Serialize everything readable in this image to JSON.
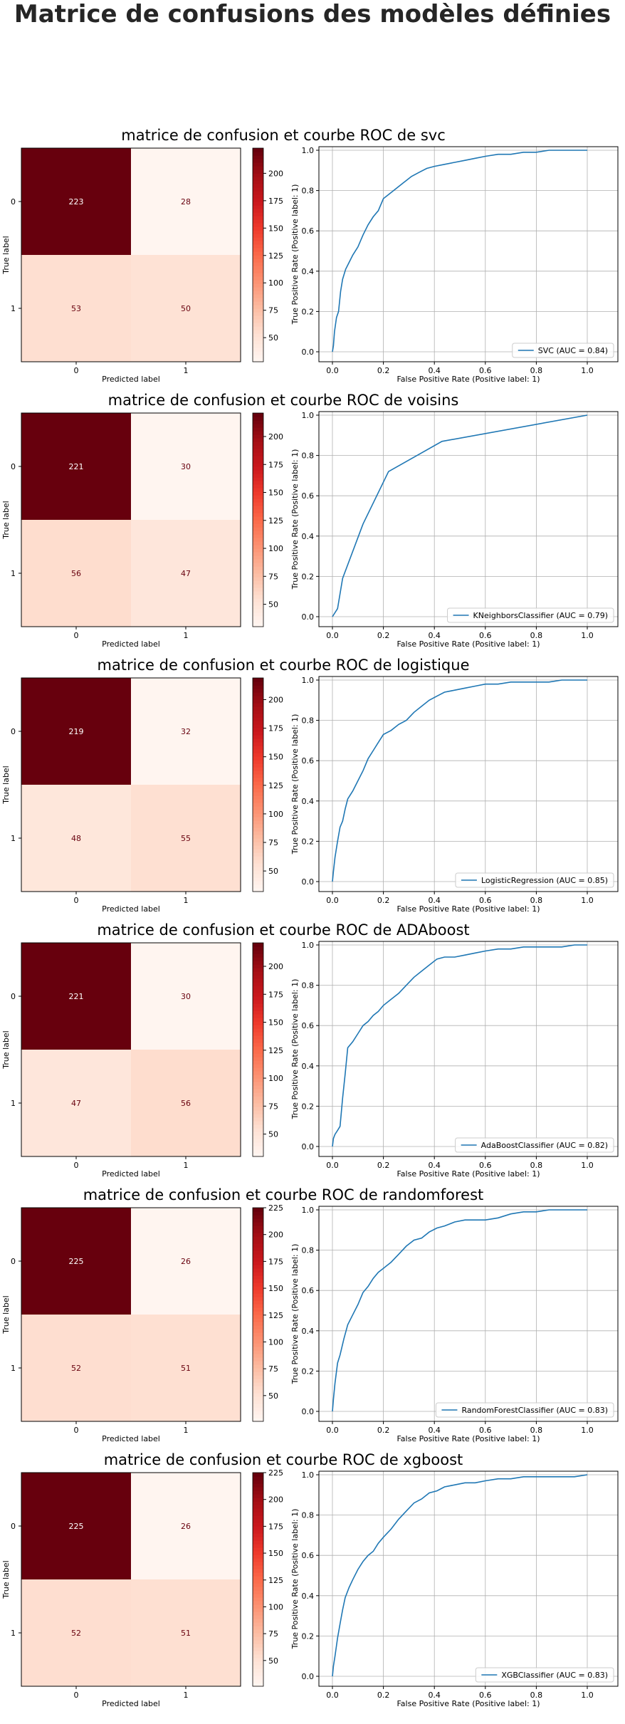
{
  "title": "Matrice de confusions des modèles définies",
  "chart_data": [
    {
      "type": "heatmap",
      "title": "matrice de confusion et courbe ROC de svc",
      "xlabel": "Predicted label",
      "ylabel": "True label",
      "x_tick_labels": [
        "0",
        "1"
      ],
      "y_tick_labels": [
        "0",
        "1"
      ],
      "matrix": [
        [
          223,
          28
        ],
        [
          53,
          50
        ]
      ],
      "colormap": "Reds",
      "colorbar_ticks": [
        50,
        75,
        100,
        125,
        150,
        175,
        200
      ],
      "colorbar_range": [
        28,
        223
      ],
      "roc": {
        "type": "line",
        "xlabel": "False Positive Rate (Positive label: 1)",
        "ylabel": "True Positive Rate (Positive label: 1)",
        "xlim": [
          0.0,
          1.0
        ],
        "ylim": [
          0.0,
          1.0
        ],
        "ticks": [
          "0.0",
          "0.2",
          "0.4",
          "0.6",
          "0.8",
          "1.0"
        ],
        "grid": true,
        "legend": "SVC (AUC = 0.84)",
        "legend_position": "lower-right",
        "color": "#1f77b4",
        "x": [
          0,
          0.004,
          0.008,
          0.016,
          0.024,
          0.032,
          0.04,
          0.052,
          0.064,
          0.08,
          0.1,
          0.12,
          0.14,
          0.16,
          0.18,
          0.2,
          0.22,
          0.25,
          0.28,
          0.31,
          0.34,
          0.37,
          0.4,
          0.44,
          0.48,
          0.52,
          0.56,
          0.6,
          0.65,
          0.7,
          0.75,
          0.8,
          0.85,
          0.9,
          0.95,
          1.0
        ],
        "y": [
          0,
          0.03,
          0.1,
          0.17,
          0.2,
          0.3,
          0.36,
          0.41,
          0.44,
          0.48,
          0.52,
          0.58,
          0.63,
          0.67,
          0.7,
          0.76,
          0.78,
          0.81,
          0.84,
          0.87,
          0.89,
          0.91,
          0.92,
          0.93,
          0.94,
          0.95,
          0.96,
          0.97,
          0.98,
          0.98,
          0.99,
          0.99,
          1.0,
          1.0,
          1.0,
          1.0
        ]
      }
    },
    {
      "type": "heatmap",
      "title": "matrice de confusion et courbe ROC de voisins",
      "xlabel": "Predicted label",
      "ylabel": "True label",
      "x_tick_labels": [
        "0",
        "1"
      ],
      "y_tick_labels": [
        "0",
        "1"
      ],
      "matrix": [
        [
          221,
          30
        ],
        [
          56,
          47
        ]
      ],
      "colormap": "Reds",
      "colorbar_ticks": [
        50,
        75,
        100,
        125,
        150,
        175,
        200
      ],
      "colorbar_range": [
        30,
        221
      ],
      "roc": {
        "type": "line",
        "xlabel": "False Positive Rate (Positive label: 1)",
        "ylabel": "True Positive Rate (Positive label: 1)",
        "xlim": [
          0.0,
          1.0
        ],
        "ylim": [
          0.0,
          1.0
        ],
        "ticks": [
          "0.0",
          "0.2",
          "0.4",
          "0.6",
          "0.8",
          "1.0"
        ],
        "grid": true,
        "legend": "KNeighborsClassifier (AUC = 0.79)",
        "legend_position": "lower-right",
        "color": "#1f77b4",
        "x": [
          0,
          0.02,
          0.04,
          0.12,
          0.22,
          0.43,
          1.0
        ],
        "y": [
          0,
          0.04,
          0.19,
          0.46,
          0.72,
          0.87,
          1.0
        ]
      }
    },
    {
      "type": "heatmap",
      "title": "matrice de confusion et courbe ROC de logistique",
      "xlabel": "Predicted label",
      "ylabel": "True label",
      "x_tick_labels": [
        "0",
        "1"
      ],
      "y_tick_labels": [
        "0",
        "1"
      ],
      "matrix": [
        [
          219,
          32
        ],
        [
          48,
          55
        ]
      ],
      "colormap": "Reds",
      "colorbar_ticks": [
        50,
        75,
        100,
        125,
        150,
        175,
        200
      ],
      "colorbar_range": [
        32,
        219
      ],
      "roc": {
        "type": "line",
        "xlabel": "False Positive Rate (Positive label: 1)",
        "ylabel": "True Positive Rate (Positive label: 1)",
        "xlim": [
          0.0,
          1.0
        ],
        "ylim": [
          0.0,
          1.0
        ],
        "ticks": [
          "0.0",
          "0.2",
          "0.4",
          "0.6",
          "0.8",
          "1.0"
        ],
        "grid": true,
        "legend": "LogisticRegression (AUC = 0.85)",
        "legend_position": "lower-right",
        "color": "#1f77b4",
        "x": [
          0,
          0.004,
          0.01,
          0.02,
          0.03,
          0.04,
          0.05,
          0.06,
          0.08,
          0.1,
          0.12,
          0.14,
          0.16,
          0.18,
          0.2,
          0.23,
          0.26,
          0.29,
          0.32,
          0.35,
          0.38,
          0.41,
          0.44,
          0.48,
          0.52,
          0.56,
          0.6,
          0.65,
          0.7,
          0.75,
          0.8,
          0.85,
          0.9,
          0.95,
          1.0
        ],
        "y": [
          0,
          0.05,
          0.12,
          0.2,
          0.27,
          0.3,
          0.36,
          0.41,
          0.45,
          0.5,
          0.55,
          0.61,
          0.65,
          0.69,
          0.73,
          0.75,
          0.78,
          0.8,
          0.84,
          0.87,
          0.9,
          0.92,
          0.94,
          0.95,
          0.96,
          0.97,
          0.98,
          0.98,
          0.99,
          0.99,
          0.99,
          0.99,
          1.0,
          1.0,
          1.0
        ]
      }
    },
    {
      "type": "heatmap",
      "title": "matrice de confusion et courbe ROC de ADAboost",
      "xlabel": "Predicted label",
      "ylabel": "True label",
      "x_tick_labels": [
        "0",
        "1"
      ],
      "y_tick_labels": [
        "0",
        "1"
      ],
      "matrix": [
        [
          221,
          30
        ],
        [
          47,
          56
        ]
      ],
      "colormap": "Reds",
      "colorbar_ticks": [
        50,
        75,
        100,
        125,
        150,
        175,
        200
      ],
      "colorbar_range": [
        30,
        221
      ],
      "roc": {
        "type": "line",
        "xlabel": "False Positive Rate (Positive label: 1)",
        "ylabel": "True Positive Rate (Positive label: 1)",
        "xlim": [
          0.0,
          1.0
        ],
        "ylim": [
          0.0,
          1.0
        ],
        "ticks": [
          "0.0",
          "0.2",
          "0.4",
          "0.6",
          "0.8",
          "1.0"
        ],
        "grid": true,
        "legend": "AdaBoostClassifier (AUC = 0.82)",
        "legend_position": "lower-right",
        "color": "#1f77b4",
        "x": [
          0,
          0.004,
          0.01,
          0.02,
          0.03,
          0.04,
          0.05,
          0.06,
          0.08,
          0.1,
          0.12,
          0.14,
          0.16,
          0.18,
          0.2,
          0.23,
          0.26,
          0.29,
          0.32,
          0.35,
          0.38,
          0.41,
          0.44,
          0.48,
          0.52,
          0.56,
          0.6,
          0.65,
          0.7,
          0.75,
          0.8,
          0.85,
          0.9,
          0.95,
          1.0
        ],
        "y": [
          0,
          0.04,
          0.06,
          0.08,
          0.1,
          0.24,
          0.36,
          0.49,
          0.52,
          0.56,
          0.6,
          0.62,
          0.65,
          0.67,
          0.7,
          0.73,
          0.76,
          0.8,
          0.84,
          0.87,
          0.9,
          0.93,
          0.94,
          0.94,
          0.95,
          0.96,
          0.97,
          0.98,
          0.98,
          0.99,
          0.99,
          0.99,
          0.99,
          1.0,
          1.0
        ]
      }
    },
    {
      "type": "heatmap",
      "title": "matrice de confusion et courbe ROC de randomforest",
      "xlabel": "Predicted label",
      "ylabel": "True label",
      "x_tick_labels": [
        "0",
        "1"
      ],
      "y_tick_labels": [
        "0",
        "1"
      ],
      "matrix": [
        [
          225,
          26
        ],
        [
          52,
          51
        ]
      ],
      "colormap": "Reds",
      "colorbar_ticks": [
        50,
        75,
        100,
        125,
        150,
        175,
        200,
        225
      ],
      "colorbar_range": [
        26,
        225
      ],
      "roc": {
        "type": "line",
        "xlabel": "False Positive Rate (Positive label: 1)",
        "ylabel": "True Positive Rate (Positive label: 1)",
        "xlim": [
          0.0,
          1.0
        ],
        "ylim": [
          0.0,
          1.0
        ],
        "ticks": [
          "0.0",
          "0.2",
          "0.4",
          "0.6",
          "0.8",
          "1.0"
        ],
        "grid": true,
        "legend": "RandomForestClassifier (AUC = 0.83)",
        "legend_position": "lower-right",
        "color": "#1f77b4",
        "x": [
          0,
          0.004,
          0.01,
          0.02,
          0.03,
          0.045,
          0.06,
          0.08,
          0.1,
          0.12,
          0.14,
          0.16,
          0.18,
          0.2,
          0.23,
          0.26,
          0.29,
          0.32,
          0.35,
          0.38,
          0.41,
          0.44,
          0.48,
          0.52,
          0.56,
          0.6,
          0.65,
          0.7,
          0.75,
          0.8,
          0.85,
          0.9,
          0.95,
          1.0
        ],
        "y": [
          0,
          0.06,
          0.14,
          0.24,
          0.28,
          0.36,
          0.43,
          0.48,
          0.53,
          0.59,
          0.62,
          0.66,
          0.69,
          0.71,
          0.74,
          0.78,
          0.82,
          0.85,
          0.86,
          0.89,
          0.91,
          0.92,
          0.94,
          0.95,
          0.95,
          0.95,
          0.96,
          0.98,
          0.99,
          0.99,
          1.0,
          1.0,
          1.0,
          1.0
        ]
      }
    },
    {
      "type": "heatmap",
      "title": "matrice de confusion et courbe ROC de xgboost",
      "xlabel": "Predicted label",
      "ylabel": "True label",
      "x_tick_labels": [
        "0",
        "1"
      ],
      "y_tick_labels": [
        "0",
        "1"
      ],
      "matrix": [
        [
          225,
          26
        ],
        [
          52,
          51
        ]
      ],
      "colormap": "Reds",
      "colorbar_ticks": [
        50,
        75,
        100,
        125,
        150,
        175,
        200,
        225
      ],
      "colorbar_range": [
        26,
        225
      ],
      "roc": {
        "type": "line",
        "xlabel": "False Positive Rate (Positive label: 1)",
        "ylabel": "True Positive Rate (Positive label: 1)",
        "xlim": [
          0.0,
          1.0
        ],
        "ylim": [
          0.0,
          1.0
        ],
        "ticks": [
          "0.0",
          "0.2",
          "0.4",
          "0.6",
          "0.8",
          "1.0"
        ],
        "grid": true,
        "legend": "XGBClassifier (AUC = 0.83)",
        "legend_position": "lower-right",
        "color": "#1f77b4",
        "x": [
          0,
          0.004,
          0.01,
          0.02,
          0.03,
          0.04,
          0.05,
          0.065,
          0.08,
          0.1,
          0.12,
          0.14,
          0.16,
          0.18,
          0.2,
          0.23,
          0.26,
          0.29,
          0.32,
          0.35,
          0.38,
          0.41,
          0.44,
          0.48,
          0.52,
          0.56,
          0.6,
          0.65,
          0.7,
          0.75,
          0.8,
          0.85,
          0.9,
          0.95,
          1.0
        ],
        "y": [
          0,
          0.05,
          0.1,
          0.19,
          0.26,
          0.33,
          0.39,
          0.44,
          0.48,
          0.53,
          0.57,
          0.6,
          0.62,
          0.66,
          0.69,
          0.73,
          0.78,
          0.82,
          0.86,
          0.88,
          0.91,
          0.92,
          0.94,
          0.95,
          0.96,
          0.96,
          0.97,
          0.98,
          0.98,
          0.99,
          0.99,
          0.99,
          0.99,
          0.99,
          1.0
        ]
      }
    }
  ]
}
